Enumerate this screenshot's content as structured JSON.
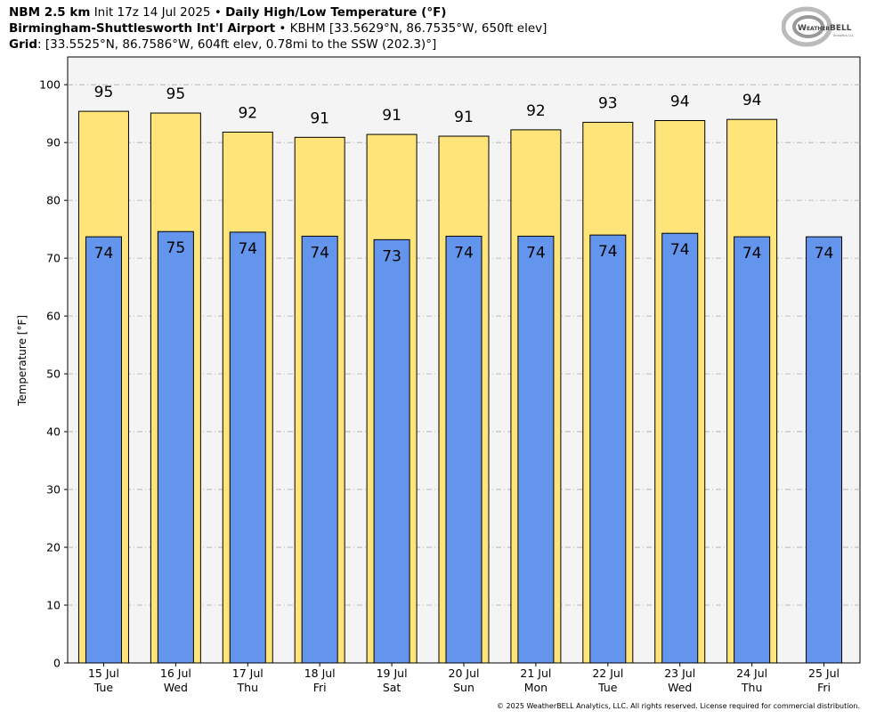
{
  "header": {
    "line1_bold1": "NBM 2.5 km",
    "line1_text": "Init 17z 14 Jul 2025",
    "line1_bold2": "Daily High/Low Temperature (°F)",
    "line2_bold": "Birmingham-Shuttlesworth Int'l Airport",
    "line2_text": "KBHM [33.5629°N, 86.7535°W, 650ft elev]",
    "line3_bold": "Grid",
    "line3_text": ": [33.5525°N, 86.7586°W, 604ft elev, 0.78mi to the SSW (202.3)°]",
    "separator": "•"
  },
  "logo": {
    "text": "WeatherBELL",
    "subtext": "Analytics LLC"
  },
  "copyright": "© 2025 WeatherBELL Analytics, LLC. All rights reserved. License required for commercial distribution.",
  "chart_data": {
    "type": "bar",
    "ylabel": "Temperature [°F]",
    "ylim": [
      0,
      104.8
    ],
    "yticks": [
      0,
      10,
      20,
      30,
      40,
      50,
      60,
      70,
      80,
      90,
      100
    ],
    "grid": true,
    "categories": [
      {
        "date": "15 Jul",
        "day": "Tue"
      },
      {
        "date": "16 Jul",
        "day": "Wed"
      },
      {
        "date": "17 Jul",
        "day": "Thu"
      },
      {
        "date": "18 Jul",
        "day": "Fri"
      },
      {
        "date": "19 Jul",
        "day": "Sat"
      },
      {
        "date": "20 Jul",
        "day": "Sun"
      },
      {
        "date": "21 Jul",
        "day": "Mon"
      },
      {
        "date": "22 Jul",
        "day": "Tue"
      },
      {
        "date": "23 Jul",
        "day": "Wed"
      },
      {
        "date": "24 Jul",
        "day": "Thu"
      },
      {
        "date": "25 Jul",
        "day": "Fri"
      }
    ],
    "series": [
      {
        "key": "high",
        "color": "#ffe47a",
        "values": [
          95.4,
          95.1,
          91.8,
          90.9,
          91.4,
          91.1,
          92.2,
          93.5,
          93.8,
          94.0,
          null
        ],
        "labels": [
          "95",
          "95",
          "92",
          "91",
          "91",
          "91",
          "92",
          "93",
          "94",
          "94",
          ""
        ]
      },
      {
        "key": "low",
        "color": "#6495ed",
        "values": [
          73.7,
          74.6,
          74.5,
          73.8,
          73.2,
          73.8,
          73.8,
          74.0,
          74.3,
          73.7,
          73.7
        ],
        "labels": [
          "74",
          "75",
          "74",
          "74",
          "73",
          "74",
          "74",
          "74",
          "74",
          "74",
          "74"
        ]
      }
    ],
    "plot_background": "#f4f4f4"
  }
}
